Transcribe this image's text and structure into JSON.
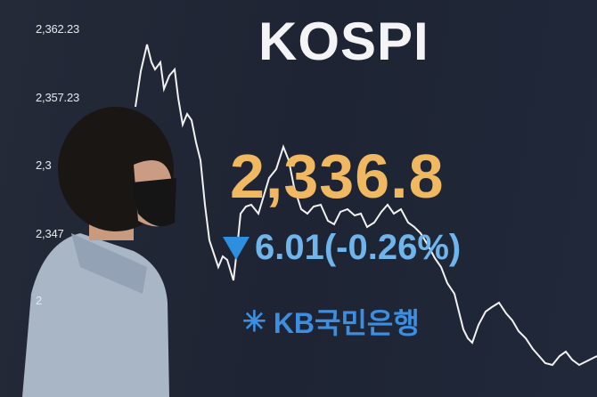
{
  "screen": {
    "title": "KOSPI",
    "index_value": "2,336.8",
    "change_icon": "down-triangle-icon",
    "change_text": "6.01(-0.26%)",
    "brand_logo": "KB국민은행",
    "y_axis_labels": [
      "2,362.23",
      "2,357.23",
      "2,3",
      "2,347",
      "2"
    ],
    "colors": {
      "value": "#f0b860",
      "change": "#6fb4ea",
      "brand": "#3d8ee0",
      "line": "#ffffff"
    }
  }
}
